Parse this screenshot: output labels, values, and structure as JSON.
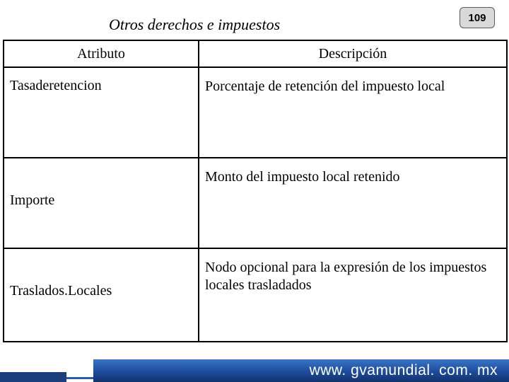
{
  "page": {
    "title": "Otros derechos e impuestos",
    "page_number": "109"
  },
  "table": {
    "columns": [
      "Atributo",
      "Descripción"
    ],
    "rows": [
      {
        "attr": "Tasaderetencion",
        "desc": "Porcentaje de retención del impuesto local"
      },
      {
        "attr": "Importe",
        "desc": "Monto del impuesto local retenido"
      },
      {
        "attr": "Traslados.Locales",
        "desc": "Nodo opcional para la expresión de los impuestos locales trasladados"
      }
    ]
  },
  "footer": {
    "url": "www. gvamundial. com. mx"
  },
  "colors": {
    "badge_bg": "#d9d9d9",
    "badge_border": "#595959",
    "footer_dark": "#1d3e7c",
    "footer_grad_top": "#3b74c4",
    "footer_grad_mid": "#1f4fa0",
    "footer_grad_bot": "#12316a",
    "text": "#000000",
    "url_text": "#ffffff"
  }
}
